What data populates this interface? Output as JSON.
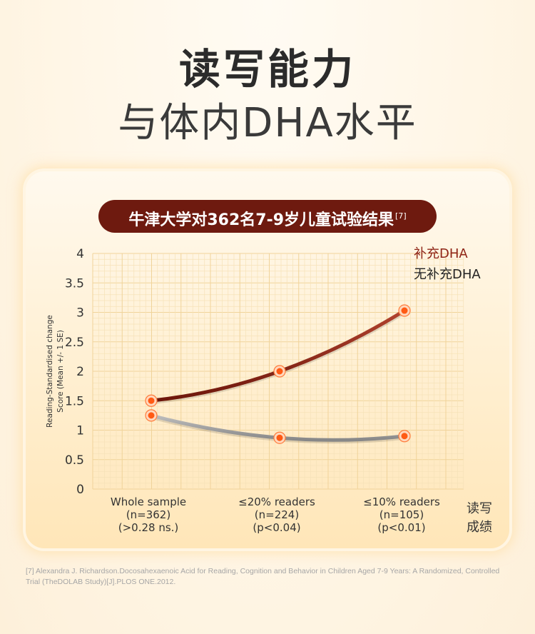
{
  "header": {
    "title": "读写能力",
    "subtitle": "与体内DHA水平"
  },
  "card": {
    "banner": "牛津大学对362名7-9岁儿童试验结果",
    "banner_ref": "[7]"
  },
  "chart_data": {
    "type": "line",
    "ylabel_line1": "Reading-Standardised change",
    "ylabel_line2": "Score (Mean +/- 1 SE)",
    "xlabel_line1": "读写",
    "xlabel_line2": "成绩",
    "ylim": [
      0,
      4
    ],
    "yticks": [
      "0",
      "0.5",
      "1",
      "1.5",
      "2",
      "2.5",
      "3",
      "3.5",
      "4"
    ],
    "categories": [
      [
        "Whole sample",
        "(n=362)",
        "(>0.28 ns.)"
      ],
      [
        "≤20% readers",
        "(n=224)",
        "(p<0.04)"
      ],
      [
        "≤10% readers",
        "(n=105)",
        "(p<0.01)"
      ]
    ],
    "series": [
      {
        "name": "补充DHA",
        "values": [
          1.5,
          2.0,
          3.03
        ],
        "color": "#8e2416"
      },
      {
        "name": "无补充DHA",
        "values": [
          1.25,
          0.87,
          0.9
        ],
        "color": "#9e9e9e"
      }
    ],
    "marker_color": "#ff5a14",
    "grid": true,
    "legend": "top-right"
  },
  "footnote": "[7] Alexandra J. Richardson.Docosahexaenoic Acid for Reading, Cognition and Behavior in Children Aged 7-9 Years: A Randomized, Controlled Trial (TheDOLAB Study)[J].PLOS ONE.2012."
}
